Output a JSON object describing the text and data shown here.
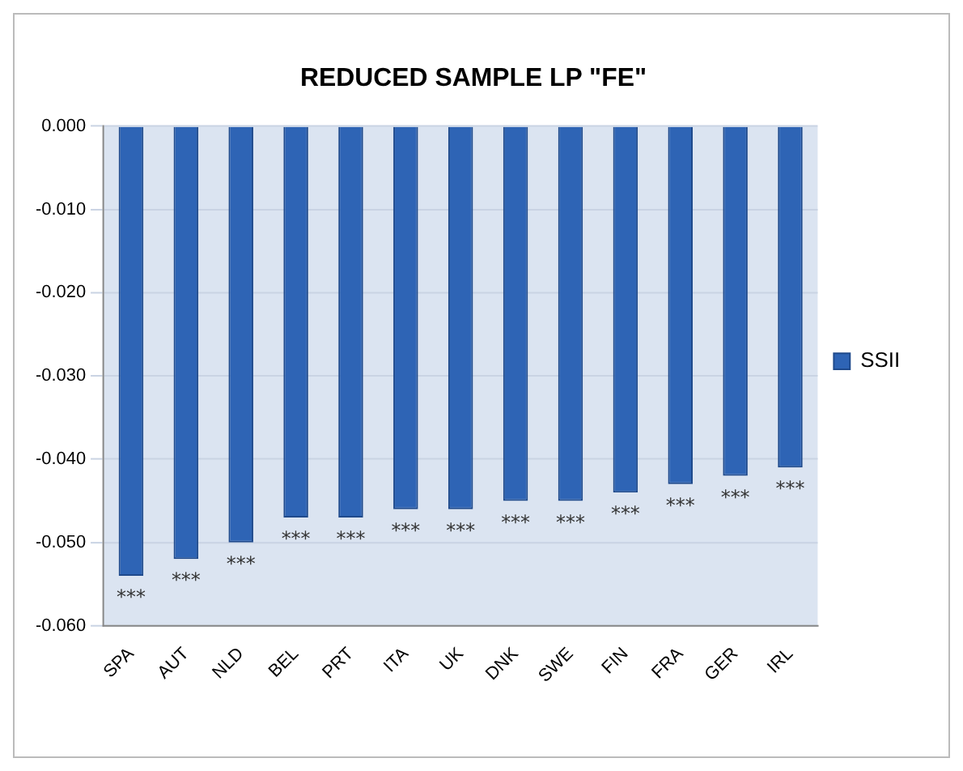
{
  "chart_data": {
    "type": "bar",
    "title": "REDUCED SAMPLE LP \"FE\"",
    "categories": [
      "SPA",
      "AUT",
      "NLD",
      "BEL",
      "PRT",
      "ITA",
      "UK",
      "DNK",
      "SWE",
      "FIN",
      "FRA",
      "GER",
      "IRL"
    ],
    "series": [
      {
        "name": "SSII",
        "color": "#2e64b5",
        "values": [
          -0.054,
          -0.052,
          -0.05,
          -0.047,
          -0.047,
          -0.046,
          -0.046,
          -0.045,
          -0.045,
          -0.044,
          -0.043,
          -0.042,
          -0.041
        ],
        "value_labels": [
          "***",
          "***",
          "***",
          "***",
          "***",
          "***",
          "***",
          "***",
          "***",
          "***",
          "***",
          "***",
          "***"
        ]
      }
    ],
    "ylim": [
      -0.06,
      0
    ],
    "yticks": [
      {
        "value": 0,
        "label": "0.000"
      },
      {
        "value": -0.01,
        "label": "-0.010"
      },
      {
        "value": -0.02,
        "label": "-0.020"
      },
      {
        "value": -0.03,
        "label": "-0.030"
      },
      {
        "value": -0.04,
        "label": "-0.040"
      },
      {
        "value": -0.05,
        "label": "-0.050"
      },
      {
        "value": -0.06,
        "label": "-0.060"
      }
    ],
    "grid": "y",
    "legend": "right"
  }
}
